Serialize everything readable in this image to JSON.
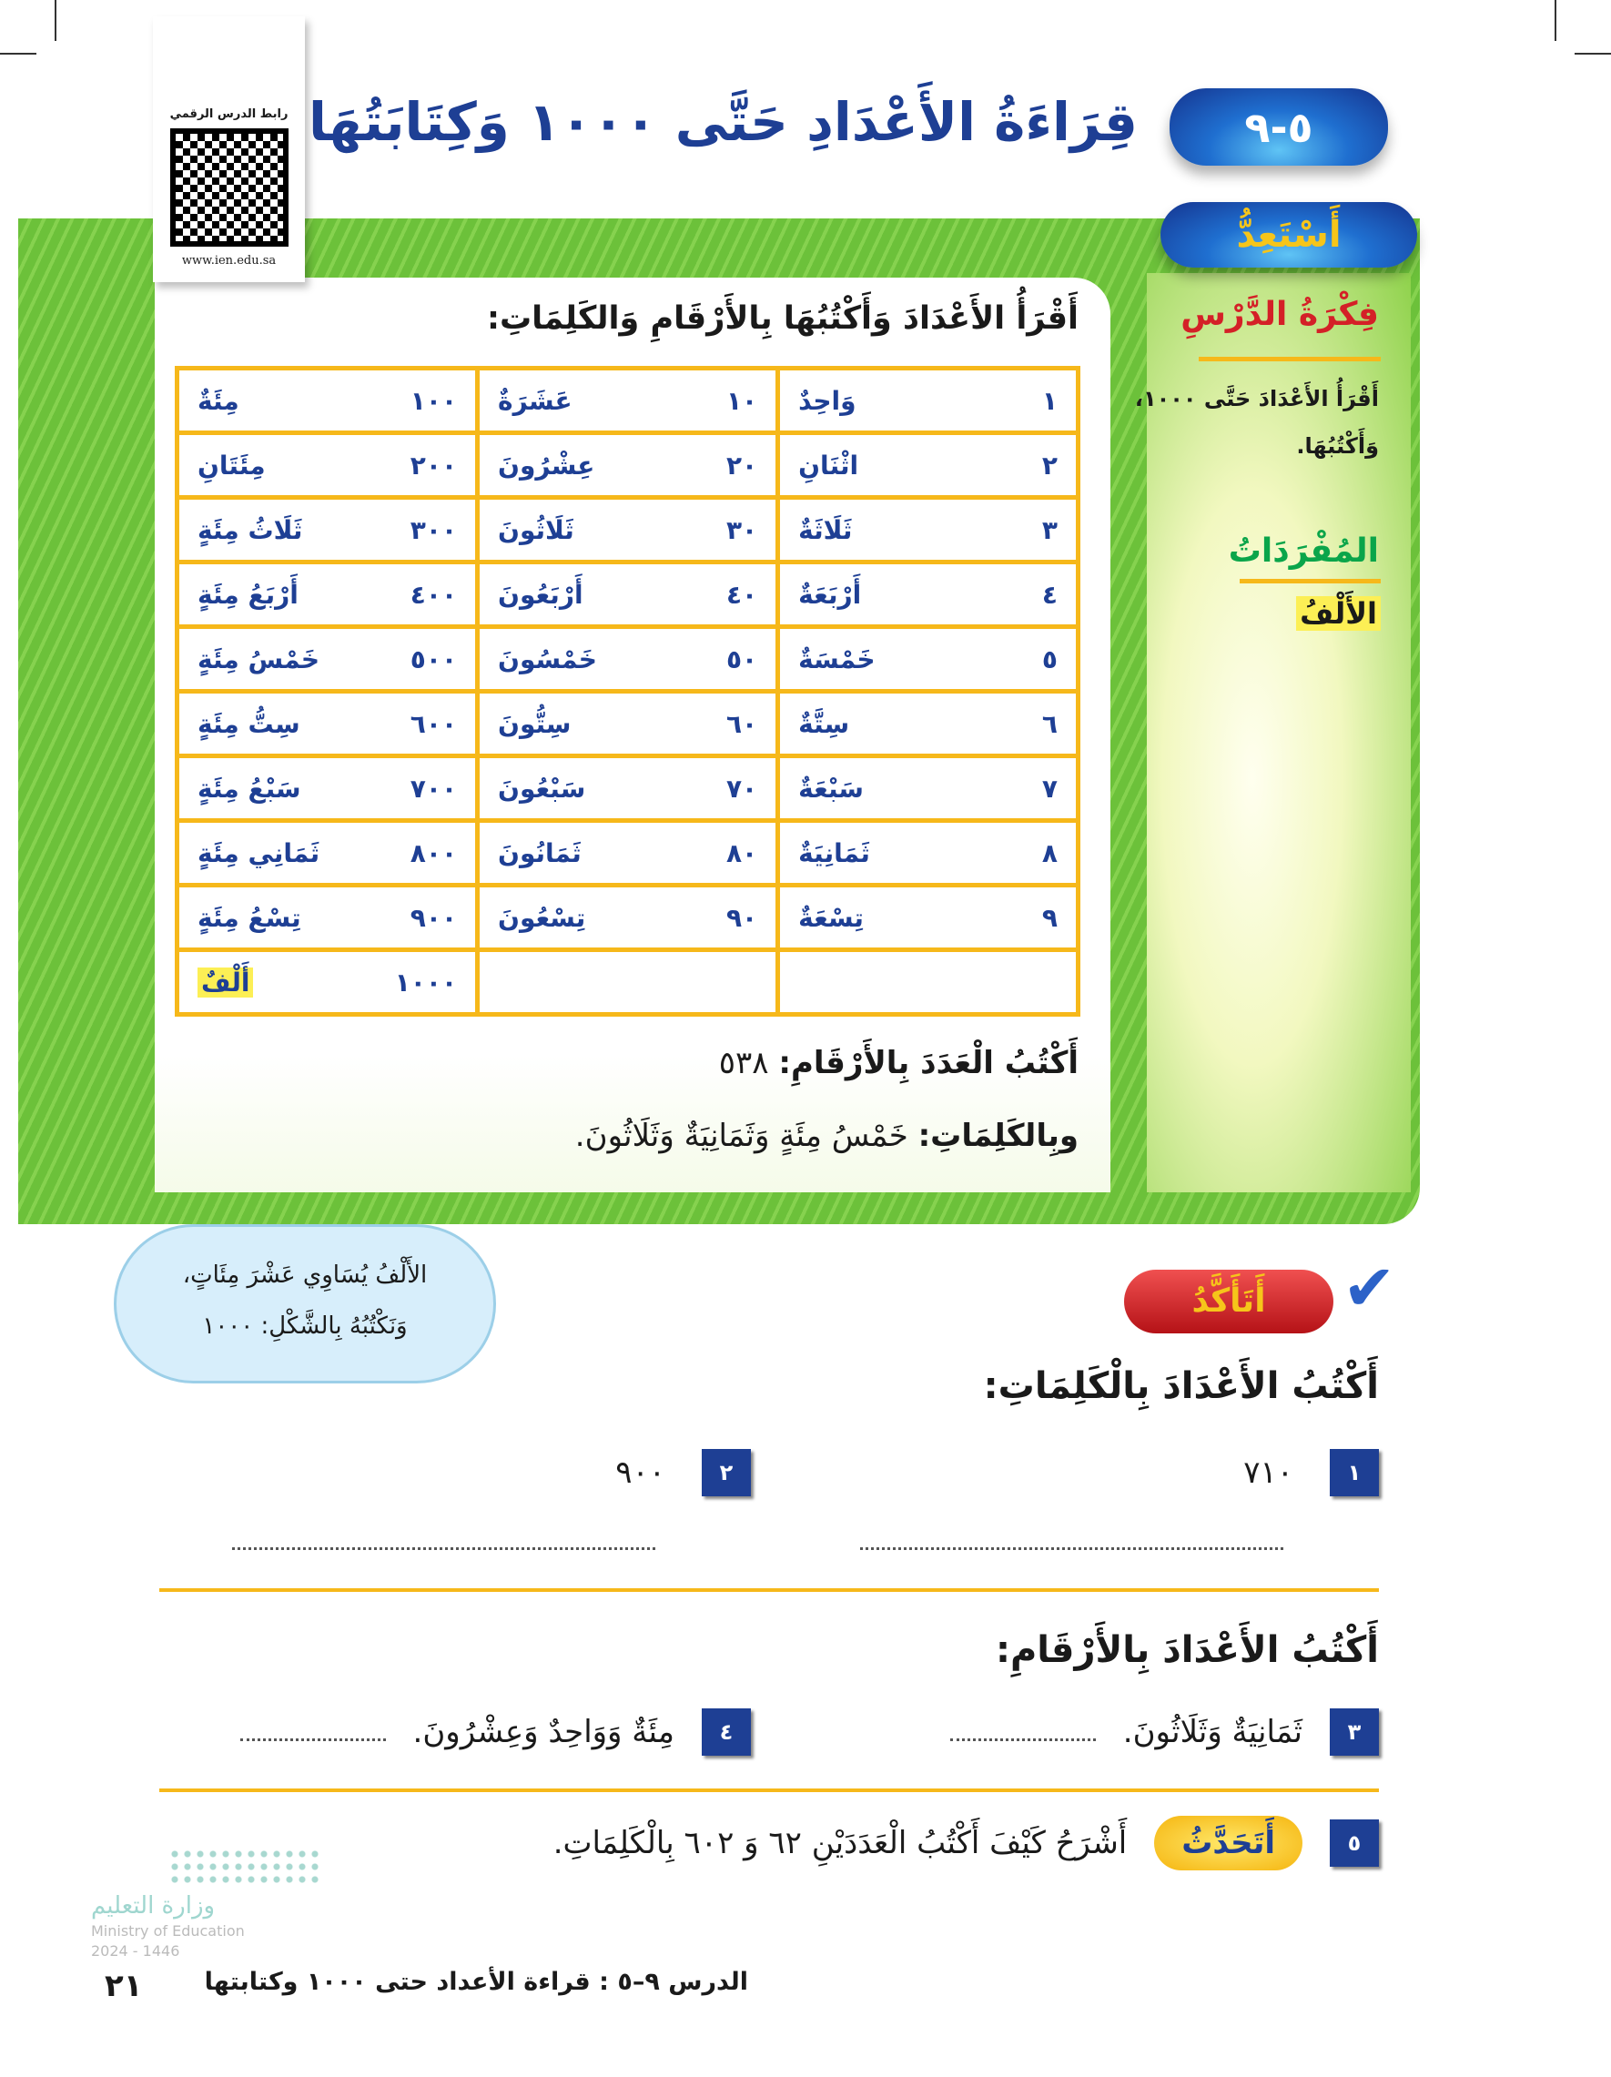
{
  "header": {
    "lesson_number": "٥-٩",
    "title": "قِرَاءَةُ الأَعْدَادِ حَتَّى ١٠٠٠ وَكِتَابَتُهَا",
    "qr_label": "رابط الدرس الرقمي",
    "qr_url": "www.ien.edu.sa"
  },
  "prepare": {
    "badge": "أَسْتَعِدُّ",
    "instruction": "أَقْرَأُ الأَعْدَادَ وَأَكْتُبُهَا بِالأَرْقَامِ وَالكَلِمَاتِ:",
    "table": [
      [
        [
          "١",
          "وَاحِدٌ"
        ],
        [
          "١٠",
          "عَشَرَةٌ"
        ],
        [
          "١٠٠",
          "مِئَةٌ"
        ]
      ],
      [
        [
          "٢",
          "اثْنَانِ"
        ],
        [
          "٢٠",
          "عِشْرُونَ"
        ],
        [
          "٢٠٠",
          "مِئَتَانِ"
        ]
      ],
      [
        [
          "٣",
          "ثَلَاثَةٌ"
        ],
        [
          "٣٠",
          "ثَلَاثُونَ"
        ],
        [
          "٣٠٠",
          "ثَلَاثُ مِئَةٍ"
        ]
      ],
      [
        [
          "٤",
          "أَرْبَعَةٌ"
        ],
        [
          "٤٠",
          "أَرْبَعُونَ"
        ],
        [
          "٤٠٠",
          "أَرْبَعُ مِئَةٍ"
        ]
      ],
      [
        [
          "٥",
          "خَمْسَةٌ"
        ],
        [
          "٥٠",
          "خَمْسُونَ"
        ],
        [
          "٥٠٠",
          "خَمْسُ مِئَةٍ"
        ]
      ],
      [
        [
          "٦",
          "سِتَّةٌ"
        ],
        [
          "٦٠",
          "سِتُّونَ"
        ],
        [
          "٦٠٠",
          "سِتُّ مِئَةٍ"
        ]
      ],
      [
        [
          "٧",
          "سَبْعَةٌ"
        ],
        [
          "٧٠",
          "سَبْعُونَ"
        ],
        [
          "٧٠٠",
          "سَبْعُ مِئَةٍ"
        ]
      ],
      [
        [
          "٨",
          "ثَمَانِيَةٌ"
        ],
        [
          "٨٠",
          "ثَمَانُونَ"
        ],
        [
          "٨٠٠",
          "ثَمَانِي مِئَةٍ"
        ]
      ],
      [
        [
          "٩",
          "تِسْعَةٌ"
        ],
        [
          "٩٠",
          "تِسْعُونَ"
        ],
        [
          "٩٠٠",
          "تِسْعُ مِئَةٍ"
        ]
      ],
      [
        [
          "",
          ""
        ],
        [
          "",
          ""
        ],
        [
          "١٠٠٠",
          "أَلْفٌ"
        ]
      ]
    ],
    "example_digits_label": "أَكْتُبُ الْعَدَدَ بِالأَرْقَامِ:",
    "example_digits": "٥٣٨",
    "example_words_label": "وبِالكَلِمَاتِ:",
    "example_words": "خَمْسُ مِئَةٍ وَثَمَانِيَةٌ وَثَلَاثُونَ."
  },
  "sidebar": {
    "idea_title": "فِكْرَةُ الدَّرْسِ",
    "idea_text": "أَقْرَأُ الأَعْدَادَ حَتَّى ١٠٠٠، وَأَكْتُبُهَا.",
    "vocab_title": "المُفْرَدَاتُ",
    "vocab_word": "الأَلْفُ"
  },
  "cloud": {
    "line1": "الأَلْفُ يُسَاوِي عَشْرَ مِئَاتٍ،",
    "line2": "وَنَكْتُبُهُ بِالشَّكْلِ: ١٠٠٠"
  },
  "check": {
    "badge": "أَتَأَكَّدُ",
    "q1_title": "أَكْتُبُ الأَعْدَادَ بِالْكَلِمَاتِ:",
    "items1": [
      {
        "n": "١",
        "text": "٧١٠"
      },
      {
        "n": "٢",
        "text": "٩٠٠"
      }
    ],
    "q2_title": "أَكْتُبُ الأَعْدَادَ بِالأَرْقَامِ:",
    "items2": [
      {
        "n": "٣",
        "text": "ثَمَانِيَةٌ وَثَلَاثُونَ."
      },
      {
        "n": "٤",
        "text": "مِئَةٌ وَوَاحِدٌ وَعِشْرُونَ."
      }
    ],
    "item5": {
      "n": "٥",
      "badge": "أَتَحَدَّثُ",
      "text": "أَشْرَحُ كَيْفَ أَكْتُبُ الْعَدَدَيْنِ ٦٢ وَ ٦٠٢ بِالْكَلِمَاتِ."
    }
  },
  "footer": {
    "page": "٢١",
    "lesson": "الدرس ٩–٥ : قراءة الأعداد حتى ١٠٠٠ وكتابتها",
    "ministry_ar": "وزارة التعليم",
    "ministry_en": "Ministry of Education",
    "year": "2024 - 1446"
  },
  "colors": {
    "blue": "#1e3f94",
    "orange": "#f6b81a",
    "green": "#6cc13a",
    "red": "#d42027"
  }
}
